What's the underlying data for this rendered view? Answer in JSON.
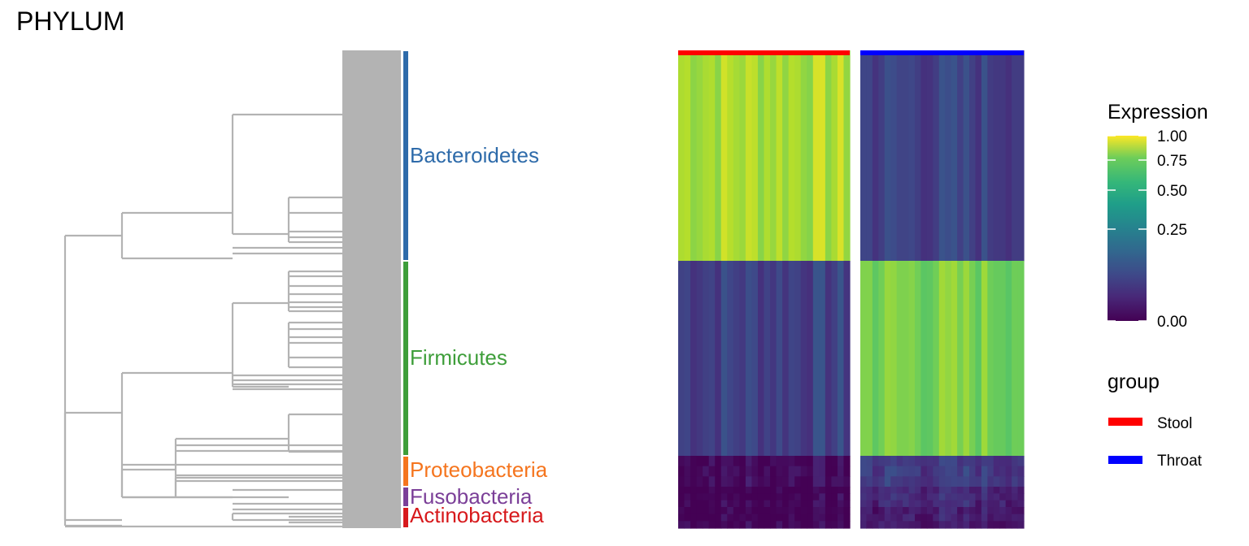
{
  "title": "PHYLUM",
  "chart_data": {
    "type": "heatmap",
    "title": "PHYLUM",
    "row_groups": [
      {
        "name": "Bacteroidetes",
        "color": "#2E6BAA"
      },
      {
        "name": "Firmicutes",
        "color": "#3E9E3A"
      },
      {
        "name": "Proteobacteria",
        "color": "#F5751E"
      },
      {
        "name": "Fusobacteria",
        "color": "#7B3F98"
      },
      {
        "name": "Actinobacteria",
        "color": "#D7191C"
      }
    ],
    "column_groups": [
      {
        "name": "Stool",
        "color": "#FF0000"
      },
      {
        "name": "Throat",
        "color": "#0000FF"
      }
    ],
    "block_values": {
      "Stool": {
        "Bacteroidetes": 0.88,
        "Firmicutes": 0.2,
        "Proteobacteria": 0.03,
        "Fusobacteria": 0.0,
        "Actinobacteria": 0.01
      },
      "Throat": {
        "Bacteroidetes": 0.2,
        "Firmicutes": 0.8,
        "Proteobacteria": 0.18,
        "Fusobacteria": 0.12,
        "Actinobacteria": 0.08
      }
    },
    "color_scale": {
      "title": "Expression",
      "ticks": [
        "0.00",
        "0.25",
        "0.50",
        "0.75",
        "1.00"
      ],
      "palette": "viridis"
    },
    "legend": {
      "title": "group",
      "entries": [
        {
          "label": "Stool",
          "color": "#FF0000"
        },
        {
          "label": "Throat",
          "color": "#0000FF"
        }
      ]
    },
    "dendrogram_color": "#B3B3B3"
  }
}
